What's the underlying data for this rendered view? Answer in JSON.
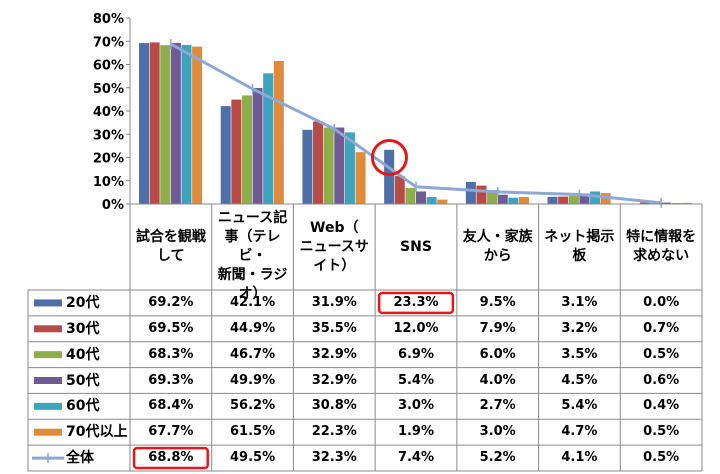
{
  "chart_data": {
    "type": "bar",
    "ylim": [
      0,
      80
    ],
    "yticks": [
      "0%",
      "10%",
      "20%",
      "30%",
      "40%",
      "50%",
      "60%",
      "70%",
      "80%"
    ],
    "grid": false,
    "categories": [
      "試合を観戦\nして",
      "ニュース記\n事（テレビ・\n新聞・ラジ\nオ）",
      "Web（\nニュースサ\nイト）",
      "SNS",
      "友人・家族\nから",
      "ネット掲示\n板",
      "特に情報を\n求めない"
    ],
    "series": [
      {
        "name": "20代",
        "color": "#4F6FA8",
        "values": [
          69.2,
          42.1,
          31.9,
          23.3,
          9.5,
          3.1,
          0.0
        ],
        "labels": [
          "69.2%",
          "42.1%",
          "31.9%",
          "23.3%",
          "9.5%",
          "3.1%",
          "0.0%"
        ]
      },
      {
        "name": "30代",
        "color": "#B84A48",
        "values": [
          69.5,
          44.9,
          35.5,
          12.0,
          7.9,
          3.2,
          0.7
        ],
        "labels": [
          "69.5%",
          "44.9%",
          "35.5%",
          "12.0%",
          "7.9%",
          "3.2%",
          "0.7%"
        ]
      },
      {
        "name": "40代",
        "color": "#8DAE4A",
        "values": [
          68.3,
          46.7,
          32.9,
          6.9,
          6.0,
          3.5,
          0.5
        ],
        "labels": [
          "68.3%",
          "46.7%",
          "32.9%",
          "6.9%",
          "6.0%",
          "3.5%",
          "0.5%"
        ]
      },
      {
        "name": "50代",
        "color": "#705A94",
        "values": [
          69.3,
          49.9,
          32.9,
          5.4,
          4.0,
          4.5,
          0.6
        ],
        "labels": [
          "69.3%",
          "49.9%",
          "32.9%",
          "5.4%",
          "4.0%",
          "4.5%",
          "0.6%"
        ]
      },
      {
        "name": "60代",
        "color": "#3EA3BF",
        "values": [
          68.4,
          56.2,
          30.8,
          3.0,
          2.7,
          5.4,
          0.4
        ],
        "labels": [
          "68.4%",
          "56.2%",
          "30.8%",
          "3.0%",
          "2.7%",
          "5.4%",
          "0.4%"
        ]
      },
      {
        "name": "70代以上",
        "color": "#E08A3C",
        "values": [
          67.7,
          61.5,
          22.3,
          1.9,
          3.0,
          4.7,
          0.5
        ],
        "labels": [
          "67.7%",
          "61.5%",
          "22.3%",
          "1.9%",
          "3.0%",
          "4.7%",
          "0.5%"
        ]
      }
    ],
    "line_series": {
      "name": "全体",
      "color": "#8EA7D4",
      "values": [
        68.8,
        49.5,
        32.3,
        7.4,
        5.2,
        4.1,
        0.5
      ],
      "labels": [
        "68.8%",
        "49.5%",
        "32.3%",
        "7.4%",
        "5.2%",
        "4.1%",
        "0.5%"
      ]
    },
    "highlights": {
      "circle_color": "#E8161A"
    }
  }
}
